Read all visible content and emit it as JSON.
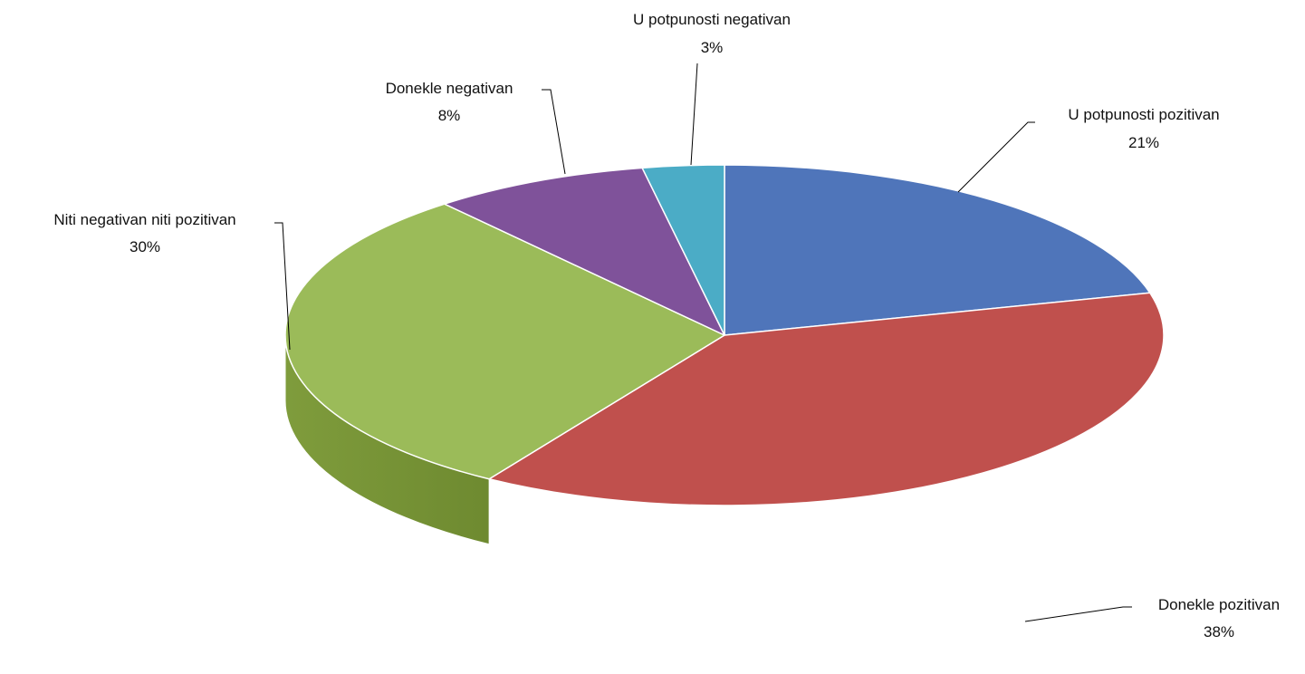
{
  "chart_data": {
    "type": "pie",
    "title": "",
    "three_d": true,
    "slices": [
      {
        "label": "U potpunosti pozitivan",
        "value": 21,
        "display": "21%",
        "color": "#4F75BA",
        "label_position": "top-right"
      },
      {
        "label": "Donekle pozitivan",
        "value": 38,
        "display": "38%",
        "color": "#C0504D",
        "label_position": "bottom-right"
      },
      {
        "label": "Niti negativan niti pozitivan",
        "value": 30,
        "display": "30%",
        "color": "#9BBB59",
        "label_position": "left"
      },
      {
        "label": "Donekle negativan",
        "value": 8,
        "display": "8%",
        "color": "#7F529A",
        "label_position": "top-left"
      },
      {
        "label": "U potpunosti negativan",
        "value": 3,
        "display": "3%",
        "color": "#4BACC6",
        "label_position": "top"
      }
    ]
  }
}
